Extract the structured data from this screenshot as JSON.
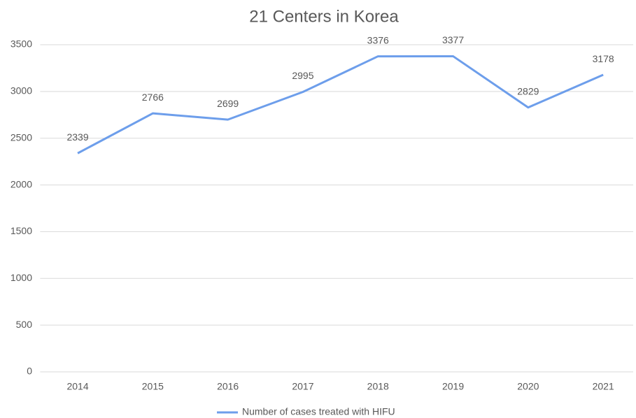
{
  "chart_data": {
    "type": "line",
    "title": "21 Centers in Korea",
    "categories": [
      "2014",
      "2015",
      "2016",
      "2017",
      "2018",
      "2019",
      "2020",
      "2021"
    ],
    "series": [
      {
        "name": "Number of cases treated with HIFU",
        "color": "#6d9eeb",
        "values": [
          2339,
          2766,
          2699,
          2995,
          3376,
          3377,
          2829,
          3178
        ]
      }
    ],
    "ylim": [
      0,
      3500
    ],
    "yticks": [
      0,
      500,
      1000,
      1500,
      2000,
      2500,
      3000,
      3500
    ],
    "grid": true,
    "legend": "bottom",
    "data_labels": true
  }
}
